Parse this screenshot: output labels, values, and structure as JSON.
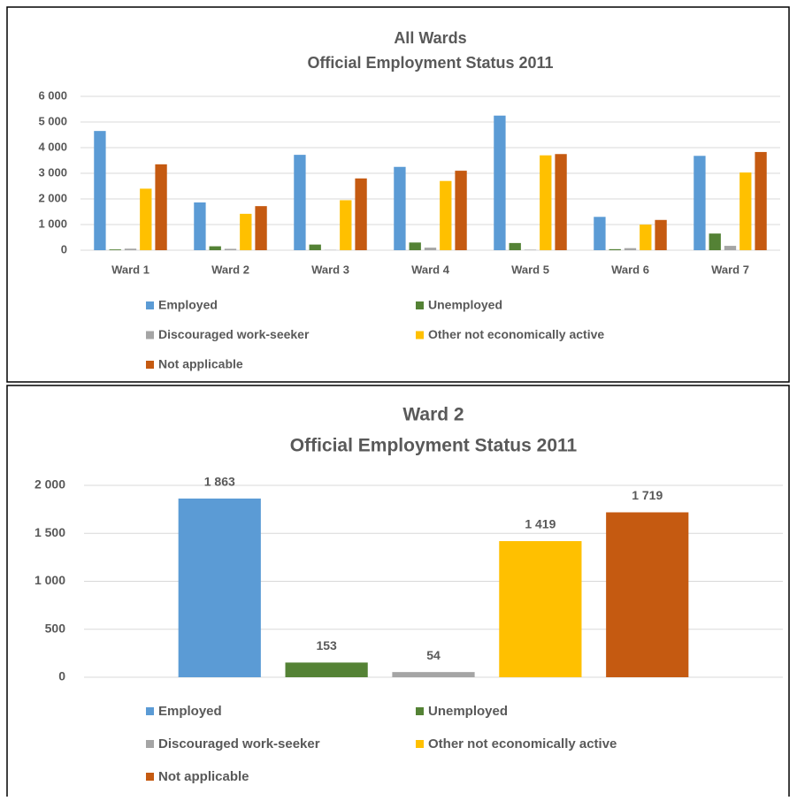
{
  "chart_data": [
    {
      "type": "bar",
      "title": "All Wards",
      "subtitle": "Official Employment Status 2011",
      "categories": [
        "Ward 1",
        "Ward 2",
        "Ward 3",
        "Ward 4",
        "Ward 5",
        "Ward 6",
        "Ward 7"
      ],
      "series": [
        {
          "name": "Employed",
          "color": "#5b9bd5",
          "values": [
            4650,
            1863,
            3720,
            3250,
            5250,
            1300,
            3680
          ]
        },
        {
          "name": "Unemployed",
          "color": "#548235",
          "values": [
            30,
            153,
            220,
            300,
            280,
            40,
            650
          ]
        },
        {
          "name": "Discouraged work-seeker",
          "color": "#a5a5a5",
          "values": [
            60,
            54,
            10,
            100,
            20,
            80,
            170
          ]
        },
        {
          "name": "Other not economically active",
          "color": "#ffc000",
          "values": [
            2400,
            1419,
            1950,
            2700,
            3700,
            1000,
            3030
          ]
        },
        {
          "name": "Not applicable",
          "color": "#c55a11",
          "values": [
            3350,
            1719,
            2800,
            3100,
            3750,
            1180,
            3830
          ]
        }
      ],
      "ylim": [
        0,
        6000
      ],
      "yticks": [
        0,
        {
          "value": 1000,
          "label": "1 000"
        },
        {
          "value": 2000,
          "label": "2 000"
        },
        {
          "value": 3000,
          "label": "3 000"
        },
        {
          "value": 4000,
          "label": "4 000"
        },
        {
          "value": 5000,
          "label": "5 000"
        },
        {
          "value": 6000,
          "label": "6 000"
        }
      ],
      "grid": true
    },
    {
      "type": "bar",
      "title": "Ward 2",
      "subtitle": "Official Employment Status 2011",
      "categories": [
        null
      ],
      "series": [
        {
          "name": "Employed",
          "color": "#5b9bd5",
          "values": [
            1863
          ],
          "value_labels": [
            "1 863"
          ]
        },
        {
          "name": "Unemployed",
          "color": "#548235",
          "values": [
            153
          ],
          "value_labels": [
            "153"
          ]
        },
        {
          "name": "Discouraged work-seeker",
          "color": "#a5a5a5",
          "values": [
            54
          ],
          "value_labels": [
            "54"
          ]
        },
        {
          "name": "Other not economically active",
          "color": "#ffc000",
          "values": [
            1419
          ],
          "value_labels": [
            "1 419"
          ]
        },
        {
          "name": "Not applicable",
          "color": "#c55a11",
          "values": [
            1719
          ],
          "value_labels": [
            "1 719"
          ]
        }
      ],
      "ylim": [
        0,
        2000
      ],
      "yticks": [
        0,
        500,
        {
          "value": 1000,
          "label": "1 000"
        },
        {
          "value": 1500,
          "label": "1 500"
        },
        {
          "value": 2000,
          "label": "2 000"
        }
      ],
      "grid": true
    }
  ]
}
